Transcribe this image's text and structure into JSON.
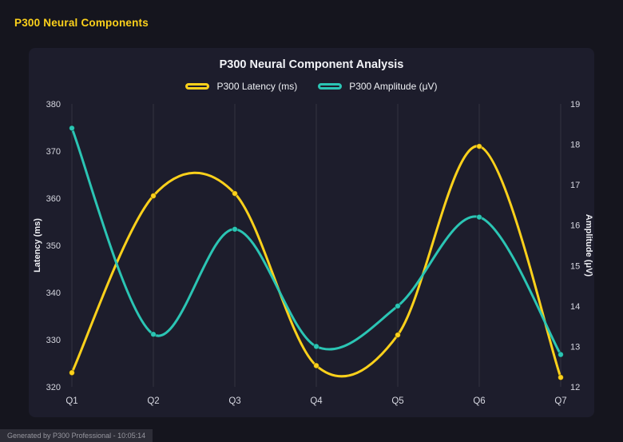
{
  "page": {
    "title": "P300 Neural Components",
    "footer": "Generated by P300 Professional - 10:05:14"
  },
  "colors": {
    "accent_yellow": "#fcd11b",
    "accent_teal": "#2bc5b4",
    "page_bg": "#15151e",
    "panel_bg": "#1d1d2c"
  },
  "chart_data": {
    "type": "line",
    "title": "P300 Neural Component Analysis",
    "categories": [
      "Q1",
      "Q2",
      "Q3",
      "Q4",
      "Q5",
      "Q6",
      "Q7"
    ],
    "series": [
      {
        "name": "P300 Latency (ms)",
        "axis": "left",
        "color": "#fcd11b",
        "values": [
          323,
          360.5,
          361,
          324.5,
          331,
          371,
          322
        ]
      },
      {
        "name": "P300 Amplitude (μV)",
        "axis": "right",
        "color": "#2bc5b4",
        "values": [
          18.4,
          13.3,
          15.9,
          13.0,
          14.0,
          16.2,
          12.8
        ]
      }
    ],
    "left_axis": {
      "label": "Latency (ms)",
      "min": 320,
      "max": 380,
      "step": 10
    },
    "right_axis": {
      "label": "Amplitude (μV)",
      "min": 12,
      "max": 19,
      "step": 1
    },
    "grid": "vertical",
    "legend_position": "top",
    "line_style": "smooth-spline",
    "point_markers": true
  }
}
